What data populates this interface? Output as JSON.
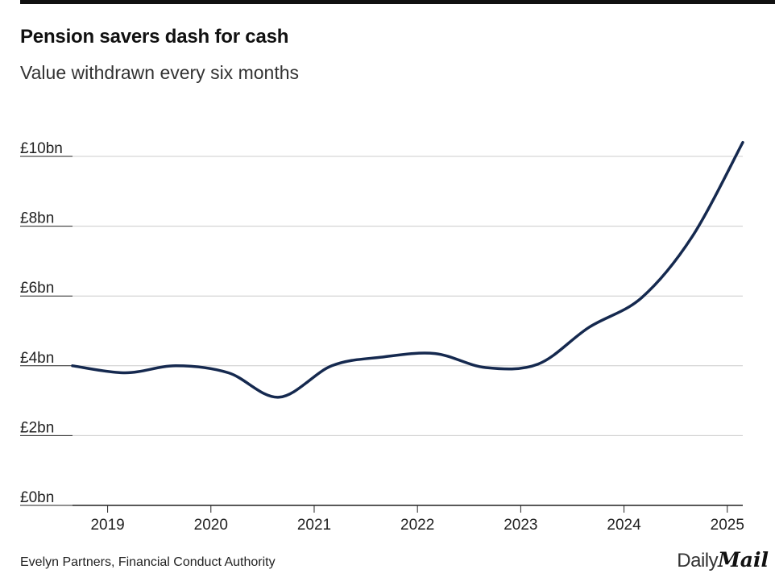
{
  "header": {
    "title": "Pension savers dash for cash",
    "subtitle": "Value withdrawn every six months"
  },
  "footer": {
    "source": "Evelyn Partners, Financial Conduct Authority",
    "brand_part1": "Daily",
    "brand_part2": "Mail"
  },
  "colors": {
    "line": "#15294f",
    "grid": "#cccccc",
    "axis": "#222222"
  },
  "chart_data": {
    "type": "line",
    "title": "Pension savers dash for cash",
    "subtitle": "Value withdrawn every six months",
    "xlabel": "",
    "ylabel": "",
    "x_ticks": [
      "2019",
      "2020",
      "2021",
      "2022",
      "2023",
      "2024",
      "2025"
    ],
    "y_ticks": [
      "£0bn",
      "£2bn",
      "£4bn",
      "£6bn",
      "£8bn",
      "£10bn"
    ],
    "ylim": [
      0,
      10
    ],
    "xlim": [
      2018.66,
      2025.15
    ],
    "grid": true,
    "series": [
      {
        "x": [
          2018.66,
          2019.17,
          2019.66,
          2020.17,
          2020.66,
          2021.17,
          2021.66,
          2022.17,
          2022.66,
          2023.17,
          2023.66,
          2024.17,
          2024.66,
          2025.15
        ],
        "y": [
          4.0,
          3.8,
          4.0,
          3.8,
          3.1,
          4.0,
          4.25,
          4.35,
          3.95,
          4.05,
          5.1,
          5.95,
          7.7,
          10.4
        ]
      }
    ]
  }
}
